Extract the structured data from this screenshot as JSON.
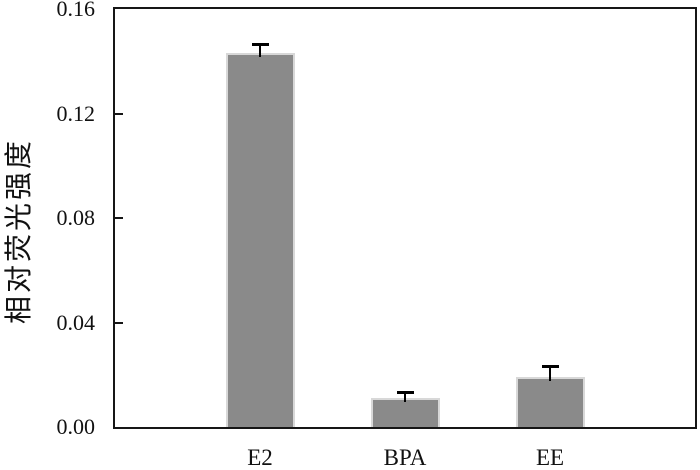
{
  "chart_data": {
    "type": "bar",
    "categories": [
      "E2",
      "BPA",
      "EE"
    ],
    "values": [
      0.143,
      0.011,
      0.019
    ],
    "errors": [
      0.003,
      0.002,
      0.004
    ],
    "error_direction": "positive-only",
    "title": "",
    "xlabel": "",
    "ylabel": "相对荧光强度",
    "ylim": [
      0,
      0.16
    ],
    "ytick_labels": [
      "0.00",
      "0.04",
      "0.08",
      "0.12",
      "0.16"
    ],
    "ytick_values": [
      0,
      0.04,
      0.08,
      0.12,
      0.16
    ],
    "grid": false,
    "legend": null,
    "colors": {
      "bar_fill": "#8a8a8a",
      "bar_border": "#d8d8d8",
      "axis": "#161616",
      "error_bar": "#000000",
      "background": "#ffffff",
      "text": "#111111"
    }
  }
}
